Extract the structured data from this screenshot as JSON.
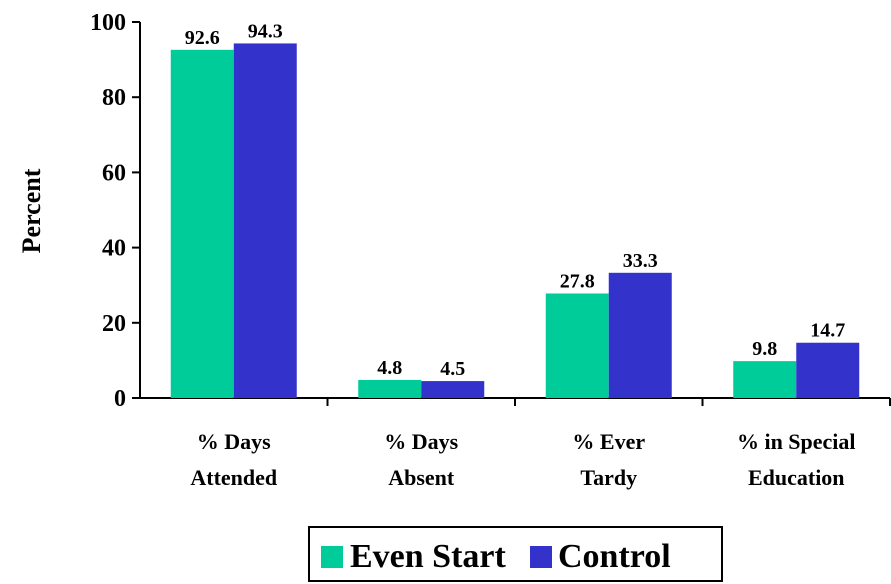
{
  "chart_data": {
    "type": "bar",
    "categories": [
      [
        "% Days",
        "Attended"
      ],
      [
        "% Days",
        "Absent"
      ],
      [
        "% Ever",
        "Tardy"
      ],
      [
        "% in Special",
        "Education"
      ]
    ],
    "series": [
      {
        "name": "Even Start",
        "values": [
          92.6,
          4.8,
          27.8,
          9.8
        ],
        "value_labels": [
          "92.6",
          "4.8",
          "27.8",
          "9.8"
        ],
        "color": "#00CC99"
      },
      {
        "name": "Control",
        "values": [
          94.3,
          4.5,
          33.3,
          14.7
        ],
        "value_labels": [
          "94.3",
          "4.5",
          "33.3",
          "14.7"
        ],
        "color": "#3333CC"
      }
    ],
    "title": "",
    "xlabel": "",
    "ylabel": "Percent",
    "ylim": [
      0,
      100
    ],
    "yticks": [
      "0",
      "20",
      "40",
      "60",
      "80",
      "100"
    ],
    "grid": false,
    "legend_position": "bottom"
  }
}
